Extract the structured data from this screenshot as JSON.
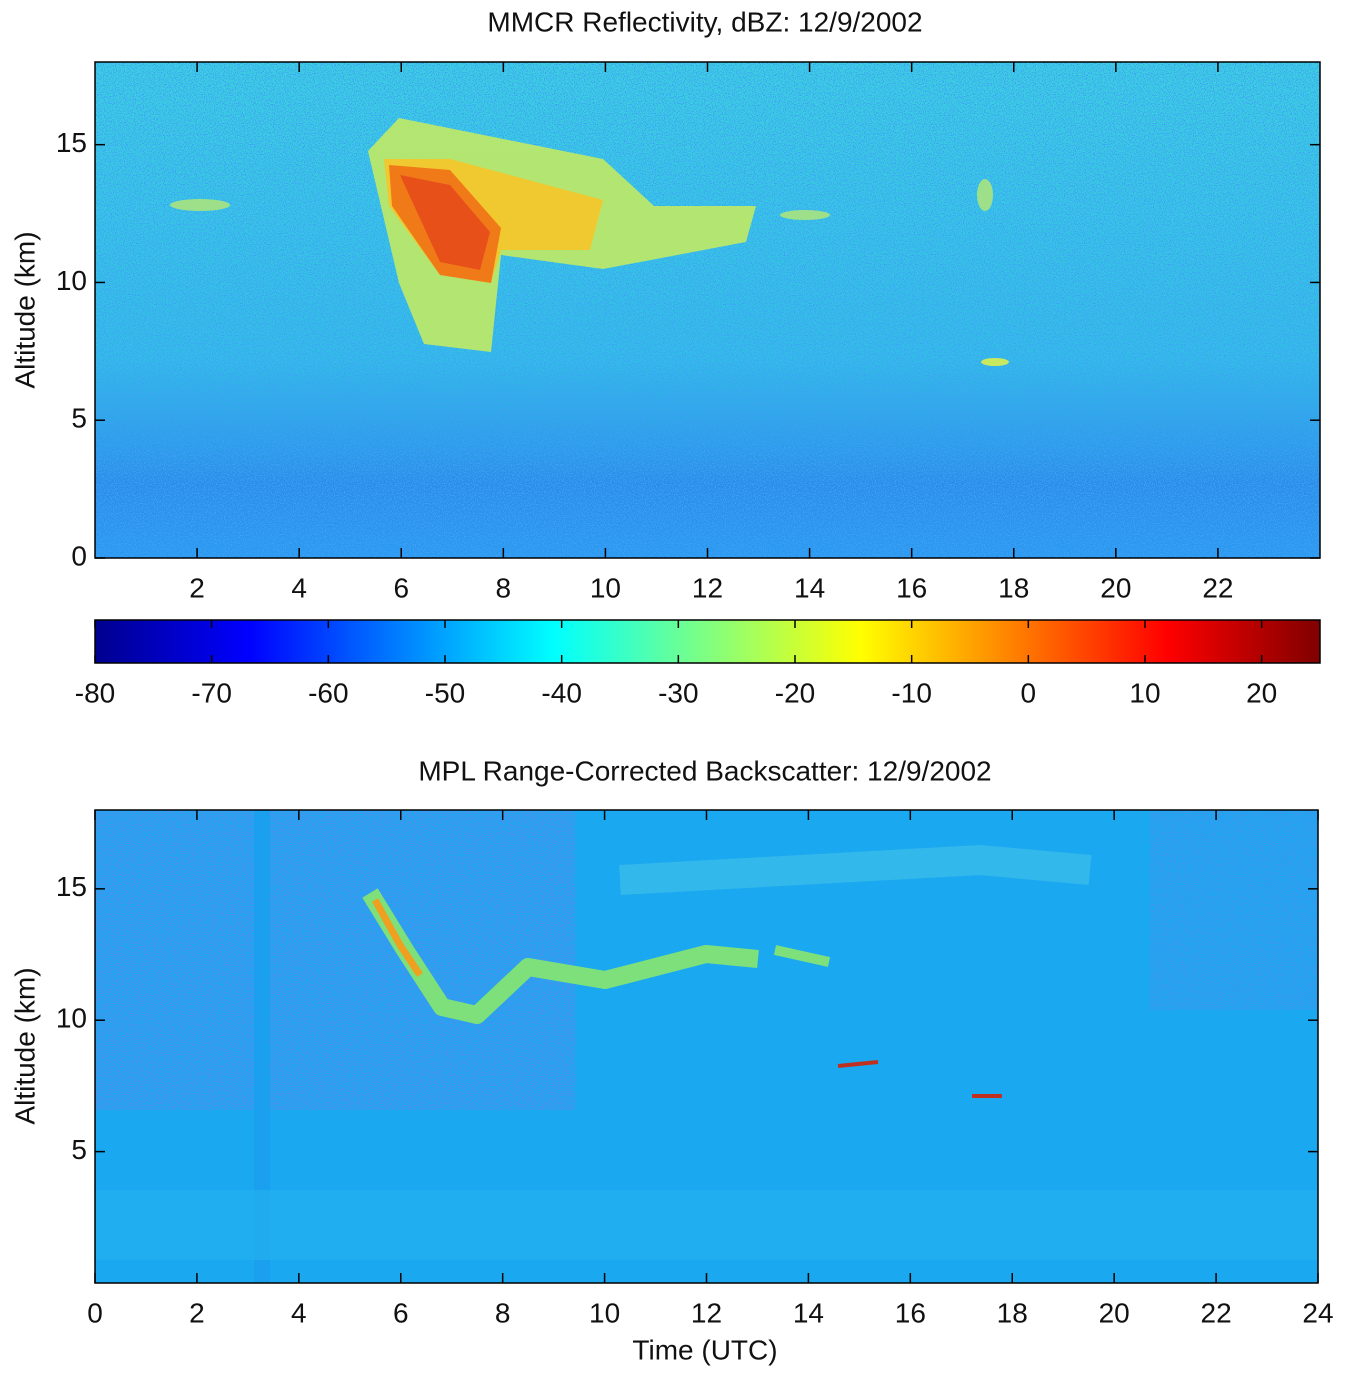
{
  "chart_data": [
    {
      "type": "heatmap",
      "title": "MMCR Reflectivity, dBZ: 12/9/2002",
      "ylabel": "Altitude (km)",
      "xlim": [
        0,
        24
      ],
      "xticks": [
        2,
        4,
        6,
        8,
        10,
        12,
        14,
        16,
        18,
        20,
        22
      ],
      "ylim": [
        0,
        18
      ],
      "yticks": [
        0,
        5,
        10,
        15
      ],
      "colormap": "jet",
      "colorbar": {
        "lim": [
          -80,
          25
        ],
        "ticks": [
          -80,
          -70,
          -60,
          -50,
          -40,
          -30,
          -20,
          -10,
          0,
          10,
          20
        ]
      }
    },
    {
      "type": "heatmap",
      "title": "MPL Range-Corrected Backscatter: 12/9/2002",
      "xlabel": "Time (UTC)",
      "ylabel": "Altitude (km)",
      "xlim": [
        0,
        24
      ],
      "xticks": [
        0,
        2,
        4,
        6,
        8,
        10,
        12,
        14,
        16,
        18,
        20,
        22,
        24
      ],
      "ylim": [
        0,
        18
      ],
      "yticks": [
        5,
        10,
        15
      ],
      "colormap": "jet"
    }
  ]
}
